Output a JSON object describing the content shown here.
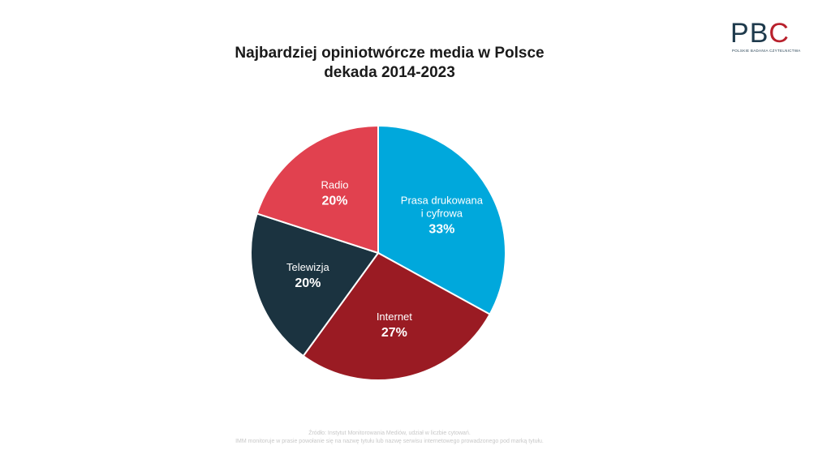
{
  "title": {
    "line1": "Najbardziej opiniotwórcze media w Polsce",
    "line2": "dekada 2014-2023"
  },
  "logo": {
    "letters": "PBC",
    "subtitle": "POLSKIE BADANIA CZYTELNICTWA",
    "colors": {
      "primary": "#1e3a4c",
      "accent": "#b8202c"
    }
  },
  "chart_data": {
    "type": "pie",
    "slices": [
      {
        "label_lines": [
          "Prasa drukowana",
          "i cyfrowa"
        ],
        "value": 33,
        "value_label": "33%",
        "color": "#00a8dc"
      },
      {
        "label_lines": [
          "Internet"
        ],
        "value": 27,
        "value_label": "27%",
        "color": "#9a1b23"
      },
      {
        "label_lines": [
          "Telewizja"
        ],
        "value": 20,
        "value_label": "20%",
        "color": "#1b3340"
      },
      {
        "label_lines": [
          "Radio"
        ],
        "value": 20,
        "value_label": "20%",
        "color": "#e1414f"
      }
    ],
    "start_angle_deg": 0,
    "direction": "clockwise",
    "legend": "none"
  },
  "source": {
    "line1": "Źródło: Instytut Monitorowania Mediów, udział w liczbie cytowań.",
    "line2": "IMM monitoruje w prasie powołanie się na nazwę tytułu lub nazwę serwisu internetowego prowadzonego pod marką tytułu."
  }
}
